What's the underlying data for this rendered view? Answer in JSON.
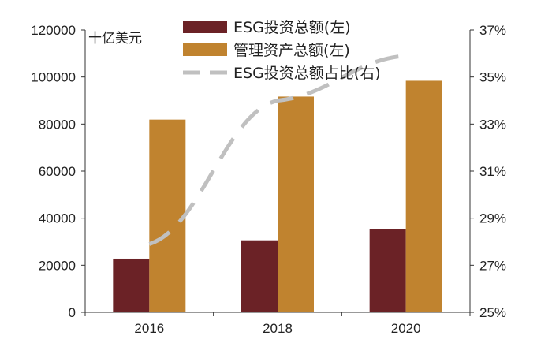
{
  "chart_data": {
    "type": "bar",
    "categories": [
      "2016",
      "2018",
      "2020"
    ],
    "series": [
      {
        "name": "ESG投资总额(左)",
        "type": "bar",
        "axis": "left",
        "color": "#6b2226",
        "values": [
          22800,
          30600,
          35300
        ]
      },
      {
        "name": "管理资产总额(左)",
        "type": "bar",
        "axis": "left",
        "color": "#c0832f",
        "values": [
          81900,
          91700,
          98400
        ]
      },
      {
        "name": "ESG投资总额占比(右)",
        "type": "line",
        "style": "dashed",
        "axis": "right",
        "color": "#c0c0c0",
        "values": [
          27.9,
          34.0,
          35.9
        ]
      }
    ],
    "y_left": {
      "unit": "十亿美元",
      "range": [
        0,
        120000
      ],
      "ticks": [
        0,
        20000,
        40000,
        60000,
        80000,
        100000,
        120000
      ],
      "tick_labels": [
        "0",
        "20000",
        "40000",
        "60000",
        "80000",
        "100000",
        "120000"
      ]
    },
    "y_right": {
      "range": [
        25,
        37
      ],
      "ticks": [
        25,
        27,
        29,
        31,
        33,
        35,
        37
      ],
      "tick_labels": [
        "25%",
        "27%",
        "29%",
        "31%",
        "33%",
        "35%",
        "37%"
      ]
    },
    "legend": {
      "position": "top-center",
      "entries": [
        "ESG投资总额(左)",
        "管理资产总额(左)",
        "ESG投资总额占比(右)"
      ]
    }
  }
}
